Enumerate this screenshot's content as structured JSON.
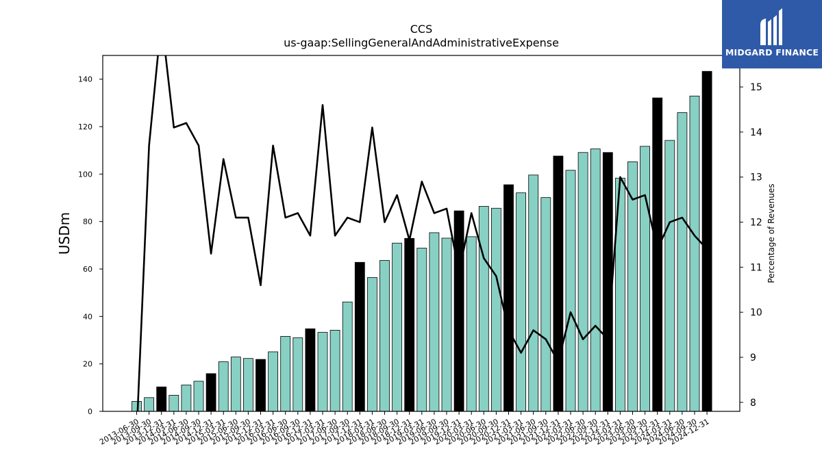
{
  "chart_data": {
    "type": "bar",
    "title": "CCS",
    "subtitle": "us-gaap:SellingGeneralAndAdministrativeExpense",
    "ylabel": "USDm",
    "y2label": "Percentage of Revenues",
    "ylim": [
      0,
      150
    ],
    "y2lim": [
      7.8,
      15.7
    ],
    "yticks": [
      0,
      20,
      40,
      60,
      80,
      100,
      120,
      140
    ],
    "y2ticks": [
      8,
      9,
      10,
      11,
      12,
      13,
      14,
      15
    ],
    "grid": false,
    "colors": {
      "bar": "#88d0c4",
      "bar_highlight": "#000000",
      "line": "#000000"
    },
    "categories": [
      "2013-06-30",
      "2013-09-30",
      "2013-12-31",
      "2014-03-31",
      "2014-06-30",
      "2014-09-30",
      "2014-12-31",
      "2015-03-31",
      "2015-06-30",
      "2015-09-30",
      "2015-12-31",
      "2016-03-31",
      "2016-06-30",
      "2016-09-30",
      "2016-12-31",
      "2017-03-31",
      "2017-06-30",
      "2017-09-30",
      "2017-12-31",
      "2018-03-31",
      "2018-06-30",
      "2018-09-30",
      "2018-12-31",
      "2019-03-31",
      "2019-06-30",
      "2019-09-30",
      "2019-12-31",
      "2020-03-31",
      "2020-06-30",
      "2020-09-30",
      "2020-12-31",
      "2021-03-31",
      "2021-06-30",
      "2021-09-30",
      "2021-12-31",
      "2022-03-31",
      "2022-06-30",
      "2022-09-30",
      "2022-12-31",
      "2023-03-31",
      "2023-06-30",
      "2023-09-30",
      "2023-12-31",
      "2024-03-31",
      "2024-06-30",
      "2024-09-30",
      "2024-12-31"
    ],
    "series": [
      {
        "type": "bar",
        "values": [
          4.2,
          5.8,
          10.3,
          6.8,
          11.1,
          12.7,
          15.9,
          20.9,
          22.9,
          22.3,
          21.9,
          25.1,
          31.6,
          31.0,
          34.8,
          33.3,
          34.2,
          46.1,
          62.8,
          56.4,
          63.6,
          70.9,
          72.9,
          68.8,
          75.3,
          73.0,
          84.5,
          73.6,
          86.4,
          85.6,
          95.5,
          92.1,
          99.6,
          90.1,
          107.6,
          101.6,
          109.1,
          110.6,
          109.1,
          98.3,
          105.2,
          111.7,
          132.1,
          114.2,
          125.9,
          132.9,
          143.3
        ],
        "highlight": [
          false,
          false,
          true,
          false,
          false,
          false,
          true,
          false,
          false,
          false,
          true,
          false,
          false,
          false,
          true,
          false,
          false,
          false,
          true,
          false,
          false,
          false,
          true,
          false,
          false,
          false,
          true,
          false,
          false,
          false,
          true,
          false,
          false,
          false,
          true,
          false,
          false,
          false,
          true,
          false,
          false,
          false,
          true,
          false,
          false,
          false,
          true
        ]
      },
      {
        "type": "line",
        "axis": "right",
        "values": [
          7.3,
          13.7,
          16.5,
          14.1,
          14.2,
          13.7,
          11.3,
          13.4,
          12.1,
          12.1,
          10.6,
          13.7,
          12.1,
          12.2,
          11.7,
          14.6,
          11.7,
          12.1,
          12.0,
          14.1,
          12.0,
          12.6,
          11.6,
          12.9,
          12.2,
          12.3,
          10.9,
          12.2,
          11.2,
          10.8,
          9.6,
          9.1,
          9.6,
          9.4,
          8.9,
          10.0,
          9.4,
          9.7,
          9.4,
          13.0,
          12.5,
          12.6,
          11.4,
          12.0,
          12.1,
          11.7,
          11.4
        ]
      }
    ]
  },
  "logo": {
    "text": "MIDGARD FINANCE"
  }
}
